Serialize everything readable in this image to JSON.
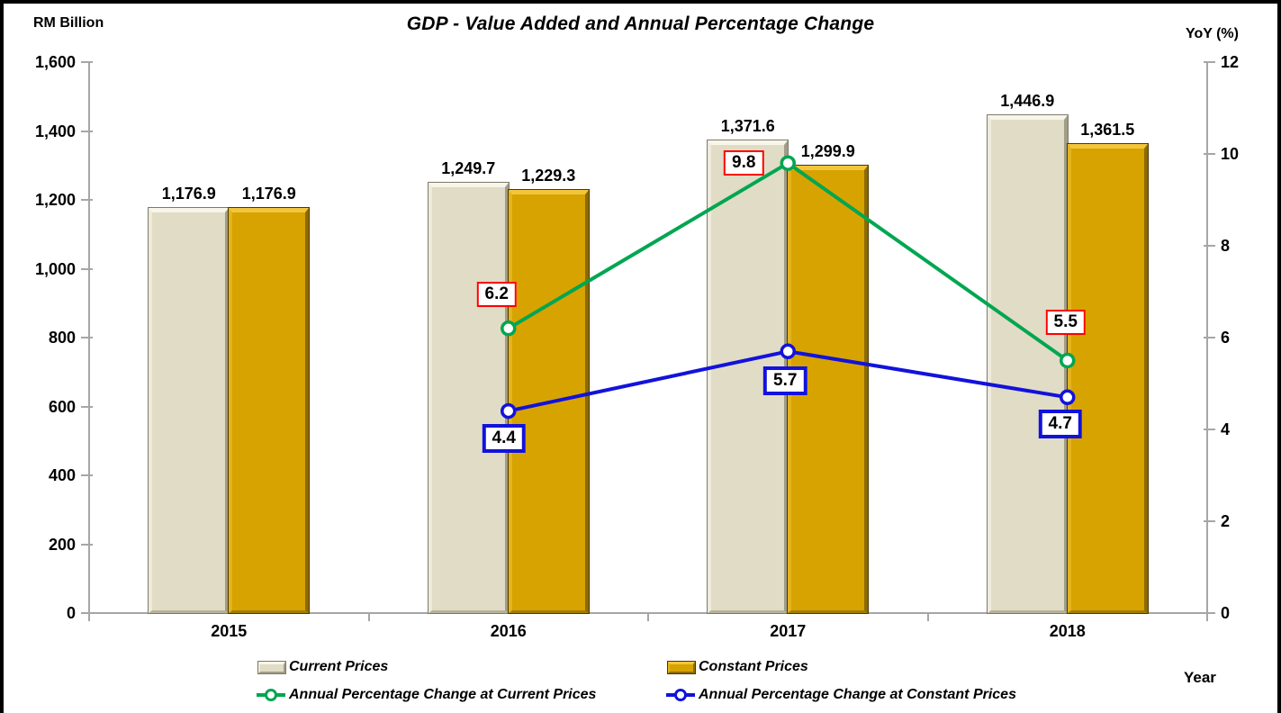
{
  "page": {
    "background": "#FFFFFF",
    "frame_border_color": "#000000",
    "axis_color": "#A6A6A6"
  },
  "chart_data": {
    "type": "combo-bar-line",
    "title": "GDP - Value Added and Annual Percentage Change",
    "categories": [
      "2015",
      "2016",
      "2017",
      "2018"
    ],
    "bar_series": [
      {
        "name": "Current Prices",
        "color": "#E1DCC5",
        "values": [
          1176.9,
          1249.7,
          1371.6,
          1446.9
        ],
        "labels": [
          "1,176.9",
          "1,249.7",
          "1,371.6",
          "1,446.9"
        ]
      },
      {
        "name": "Constant Prices",
        "color": "#D7A300",
        "values": [
          1176.9,
          1229.3,
          1299.9,
          1361.5
        ],
        "labels": [
          "1,176.9",
          "1,229.3",
          "1,299.9",
          "1,361.5"
        ]
      }
    ],
    "line_series": [
      {
        "name": "Annual Percentage Change at Current Prices",
        "color": "#00A651",
        "x": [
          "2016",
          "2017",
          "2018"
        ],
        "values": [
          6.2,
          9.8,
          5.5
        ],
        "labels": [
          "6.2",
          "9.8",
          "5.5"
        ],
        "label_border_color": "#FF0000"
      },
      {
        "name": "Annual Percentage Change at Constant Prices",
        "color": "#1212DC",
        "x": [
          "2016",
          "2017",
          "2018"
        ],
        "values": [
          4.4,
          5.7,
          4.7
        ],
        "labels": [
          "4.4",
          "5.7",
          "4.7"
        ],
        "label_border_color": "#1212DC"
      }
    ],
    "left_axis": {
      "label": "RM Billion",
      "min": 0,
      "max": 1600,
      "ticks": [
        "0",
        "200",
        "400",
        "600",
        "800",
        "1,000",
        "1,200",
        "1,400",
        "1,600"
      ]
    },
    "right_axis": {
      "label": "YoY (%)",
      "min": 0,
      "max": 12,
      "ticks": [
        "0",
        "2",
        "4",
        "6",
        "8",
        "10",
        "12"
      ]
    },
    "x_axis": {
      "label": "Year"
    },
    "legend_position": "bottom",
    "grid": "off"
  }
}
